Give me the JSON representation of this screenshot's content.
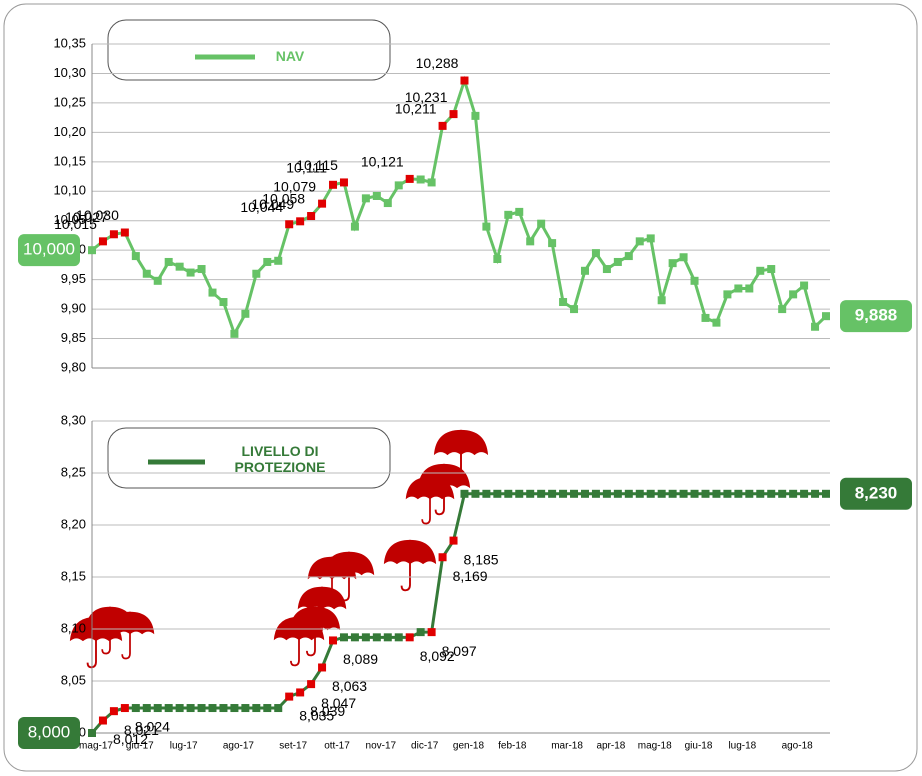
{
  "chart_data": [
    {
      "type": "line",
      "series": [
        {
          "name": "NAV",
          "color": "#66c266",
          "values": [
            10.0,
            10.015,
            10.027,
            10.03,
            9.99,
            9.96,
            9.948,
            9.98,
            9.972,
            9.962,
            9.968,
            9.928,
            9.912,
            9.858,
            9.892,
            9.96,
            9.98,
            9.982,
            10.044,
            10.049,
            10.058,
            10.079,
            10.111,
            10.115,
            10.04,
            10.088,
            10.092,
            10.08,
            10.11,
            10.121,
            10.12,
            10.115,
            10.211,
            10.231,
            10.288,
            10.228,
            10.04,
            9.985,
            10.06,
            10.065,
            10.015,
            10.045,
            10.012,
            9.912,
            9.9,
            9.965,
            9.995,
            9.968,
            9.98,
            9.99,
            10.015,
            10.02,
            9.915,
            9.978,
            9.988,
            9.948,
            9.885,
            9.877,
            9.925,
            9.935,
            9.935,
            9.965,
            9.968,
            9.9,
            9.925,
            9.94,
            9.87,
            9.888
          ],
          "value_labels": [
            "10,000",
            "10,015",
            "10,027",
            "10,030",
            null,
            null,
            null,
            null,
            null,
            null,
            null,
            null,
            null,
            null,
            null,
            null,
            null,
            null,
            "10,044",
            "10,049",
            "10,058",
            "10,079",
            "10,111",
            "10,115",
            null,
            null,
            null,
            null,
            null,
            "10,121",
            null,
            null,
            "10,211",
            "10,231",
            "10,288",
            null,
            null,
            null,
            null,
            null,
            null,
            null,
            null,
            null,
            null,
            null,
            null,
            null,
            null,
            null,
            null,
            null,
            null,
            null,
            null,
            null,
            null,
            null,
            null,
            null,
            null,
            null,
            null,
            null,
            null,
            null,
            null,
            "9,888"
          ]
        }
      ],
      "highlight_color": "#e00000",
      "ylim": [
        9.8,
        10.35
      ],
      "yticks": [
        {
          "value": 9.8,
          "label": "9,80"
        },
        {
          "value": 9.85,
          "label": "9,85"
        },
        {
          "value": 9.9,
          "label": "9,90"
        },
        {
          "value": 9.95,
          "label": "9,95"
        },
        {
          "value": 10.0,
          "label": "10,00"
        },
        {
          "value": 10.05,
          "label": "10,05"
        },
        {
          "value": 10.1,
          "label": "10,10"
        },
        {
          "value": 10.15,
          "label": "10,15"
        },
        {
          "value": 10.2,
          "label": "10,20"
        },
        {
          "value": 10.25,
          "label": "10,25"
        },
        {
          "value": 10.3,
          "label": "10,30"
        },
        {
          "value": 10.35,
          "label": "10,35"
        }
      ],
      "grid": true
    },
    {
      "type": "line",
      "categories": [
        "mag-17",
        null,
        null,
        null,
        "giu-17",
        null,
        null,
        null,
        "lug-17",
        null,
        null,
        null,
        null,
        "ago-17",
        null,
        null,
        null,
        null,
        "set-17",
        null,
        null,
        null,
        "ott-17",
        null,
        null,
        null,
        "nov-17",
        null,
        null,
        null,
        "dic-17",
        null,
        null,
        null,
        "gen-18",
        null,
        null,
        null,
        "feb-18",
        null,
        null,
        null,
        null,
        "mar-18",
        null,
        null,
        null,
        "apr-18",
        null,
        null,
        null,
        "mag-18",
        null,
        null,
        null,
        "giu-18",
        null,
        null,
        null,
        "lug-18",
        null,
        null,
        null,
        null,
        "ago-18",
        null,
        null,
        null
      ],
      "series": [
        {
          "name": "LIVELLO DI PROTEZIONE",
          "color": "#357a38",
          "values": [
            8.0,
            8.012,
            8.021,
            8.024,
            8.024,
            8.024,
            8.024,
            8.024,
            8.024,
            8.024,
            8.024,
            8.024,
            8.024,
            8.024,
            8.024,
            8.024,
            8.024,
            8.024,
            8.035,
            8.039,
            8.047,
            8.063,
            8.089,
            8.092,
            8.092,
            8.092,
            8.092,
            8.092,
            8.092,
            8.092,
            8.097,
            8.097,
            8.169,
            8.185,
            8.23,
            8.23,
            8.23,
            8.23,
            8.23,
            8.23,
            8.23,
            8.23,
            8.23,
            8.23,
            8.23,
            8.23,
            8.23,
            8.23,
            8.23,
            8.23,
            8.23,
            8.23,
            8.23,
            8.23,
            8.23,
            8.23,
            8.23,
            8.23,
            8.23,
            8.23,
            8.23,
            8.23,
            8.23,
            8.23,
            8.23,
            8.23,
            8.23,
            8.23
          ],
          "value_labels": [
            "8,000",
            "8,012",
            "8,021",
            "8,024",
            null,
            null,
            null,
            null,
            null,
            null,
            null,
            null,
            null,
            null,
            null,
            null,
            null,
            null,
            "8,035",
            "8,039",
            "8,047",
            "8,063",
            "8,089",
            null,
            null,
            null,
            null,
            null,
            null,
            "8,092",
            null,
            "8,097",
            "8,169",
            "8,185",
            null,
            null,
            null,
            null,
            null,
            null,
            null,
            null,
            null,
            null,
            null,
            null,
            null,
            null,
            null,
            null,
            null,
            null,
            null,
            null,
            null,
            null,
            null,
            null,
            null,
            null,
            null,
            null,
            null,
            null,
            null,
            null,
            null,
            "8,230"
          ]
        }
      ],
      "highlight_color": "#e00000",
      "ylim": [
        8.0,
        8.3
      ],
      "yticks": [
        {
          "value": 8.0,
          "label": "8,00"
        },
        {
          "value": 8.05,
          "label": "8,05"
        },
        {
          "value": 8.1,
          "label": "8,10"
        },
        {
          "value": 8.15,
          "label": "8,15"
        },
        {
          "value": 8.2,
          "label": "8,20"
        },
        {
          "value": 8.25,
          "label": "8,25"
        },
        {
          "value": 8.3,
          "label": "8,30"
        }
      ],
      "grid": true
    }
  ]
}
